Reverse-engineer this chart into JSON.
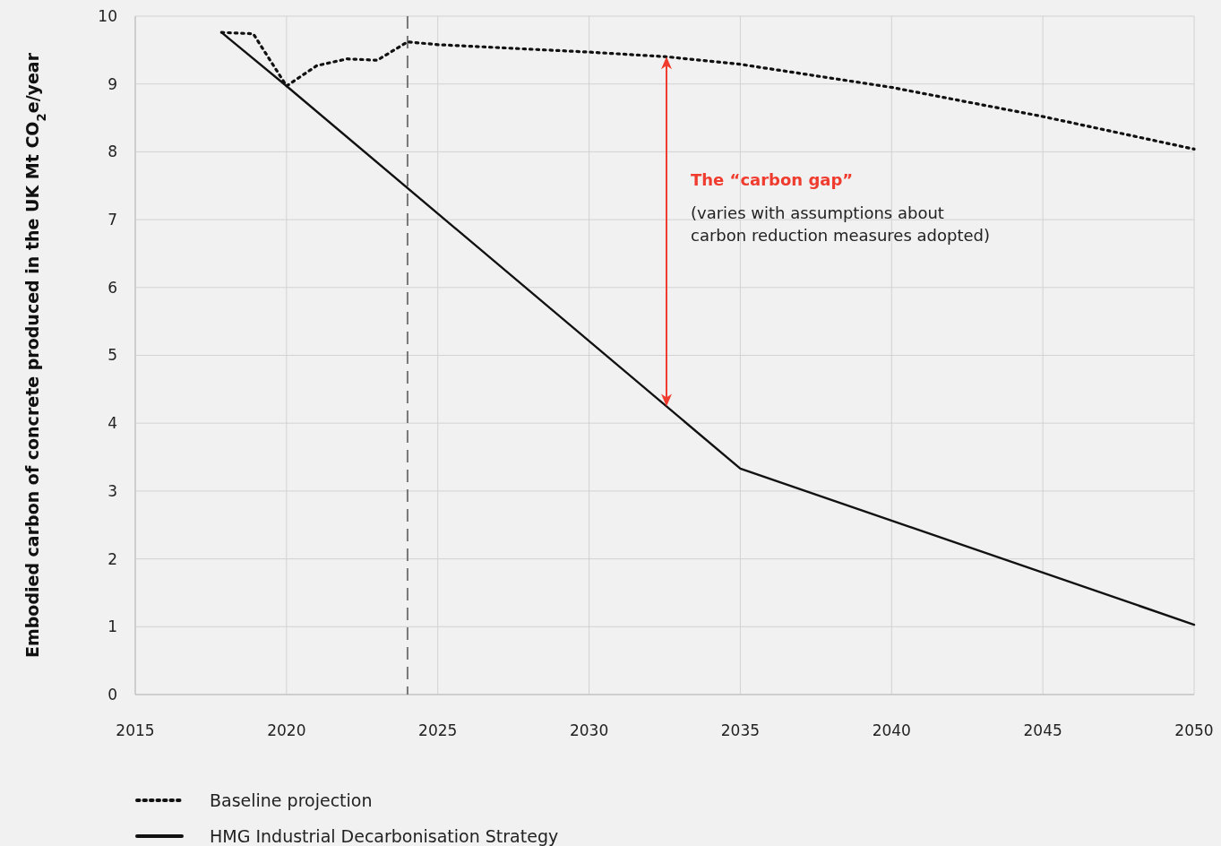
{
  "chart_data": {
    "type": "line",
    "ylabel": "Embodied carbon of concrete produced in the UK Mt CO$_{2}$e/year",
    "series": [
      {
        "name": "Baseline projection",
        "color": "#111111",
        "line_style": "dotted",
        "x": [
          2017.85,
          2018.9,
          2020,
          2021,
          2022,
          2023,
          2024,
          2025,
          2030,
          2032.6,
          2035,
          2040,
          2045,
          2050
        ],
        "values": [
          9.76,
          9.74,
          8.97,
          9.27,
          9.37,
          9.35,
          9.62,
          9.58,
          9.47,
          9.4,
          9.29,
          8.95,
          8.52,
          8.04
        ]
      },
      {
        "name": "HMG Industrial Decarbonisation Strategy",
        "color": "#111111",
        "line_style": "solid",
        "x": [
          2017.85,
          2020,
          2035,
          2050
        ],
        "values": [
          9.76,
          8.97,
          3.33,
          1.03
        ]
      }
    ],
    "xlim": [
      2015,
      2050
    ],
    "xticks": [
      2015,
      2020,
      2025,
      2030,
      2035,
      2040,
      2045,
      2050
    ],
    "ylim": [
      0,
      10
    ],
    "yticks": [
      0,
      1,
      2,
      3,
      4,
      5,
      6,
      7,
      8,
      9,
      10
    ],
    "grid": true,
    "legend": "bottom left",
    "ref_lines": [
      {
        "axis": "x",
        "value": 2024,
        "color": "#777777",
        "line_style": "dashed"
      }
    ],
    "annotations": [
      "The “carbon gap”",
      "(varies with assumptions about carbon reduction measures adopted)"
    ]
  }
}
